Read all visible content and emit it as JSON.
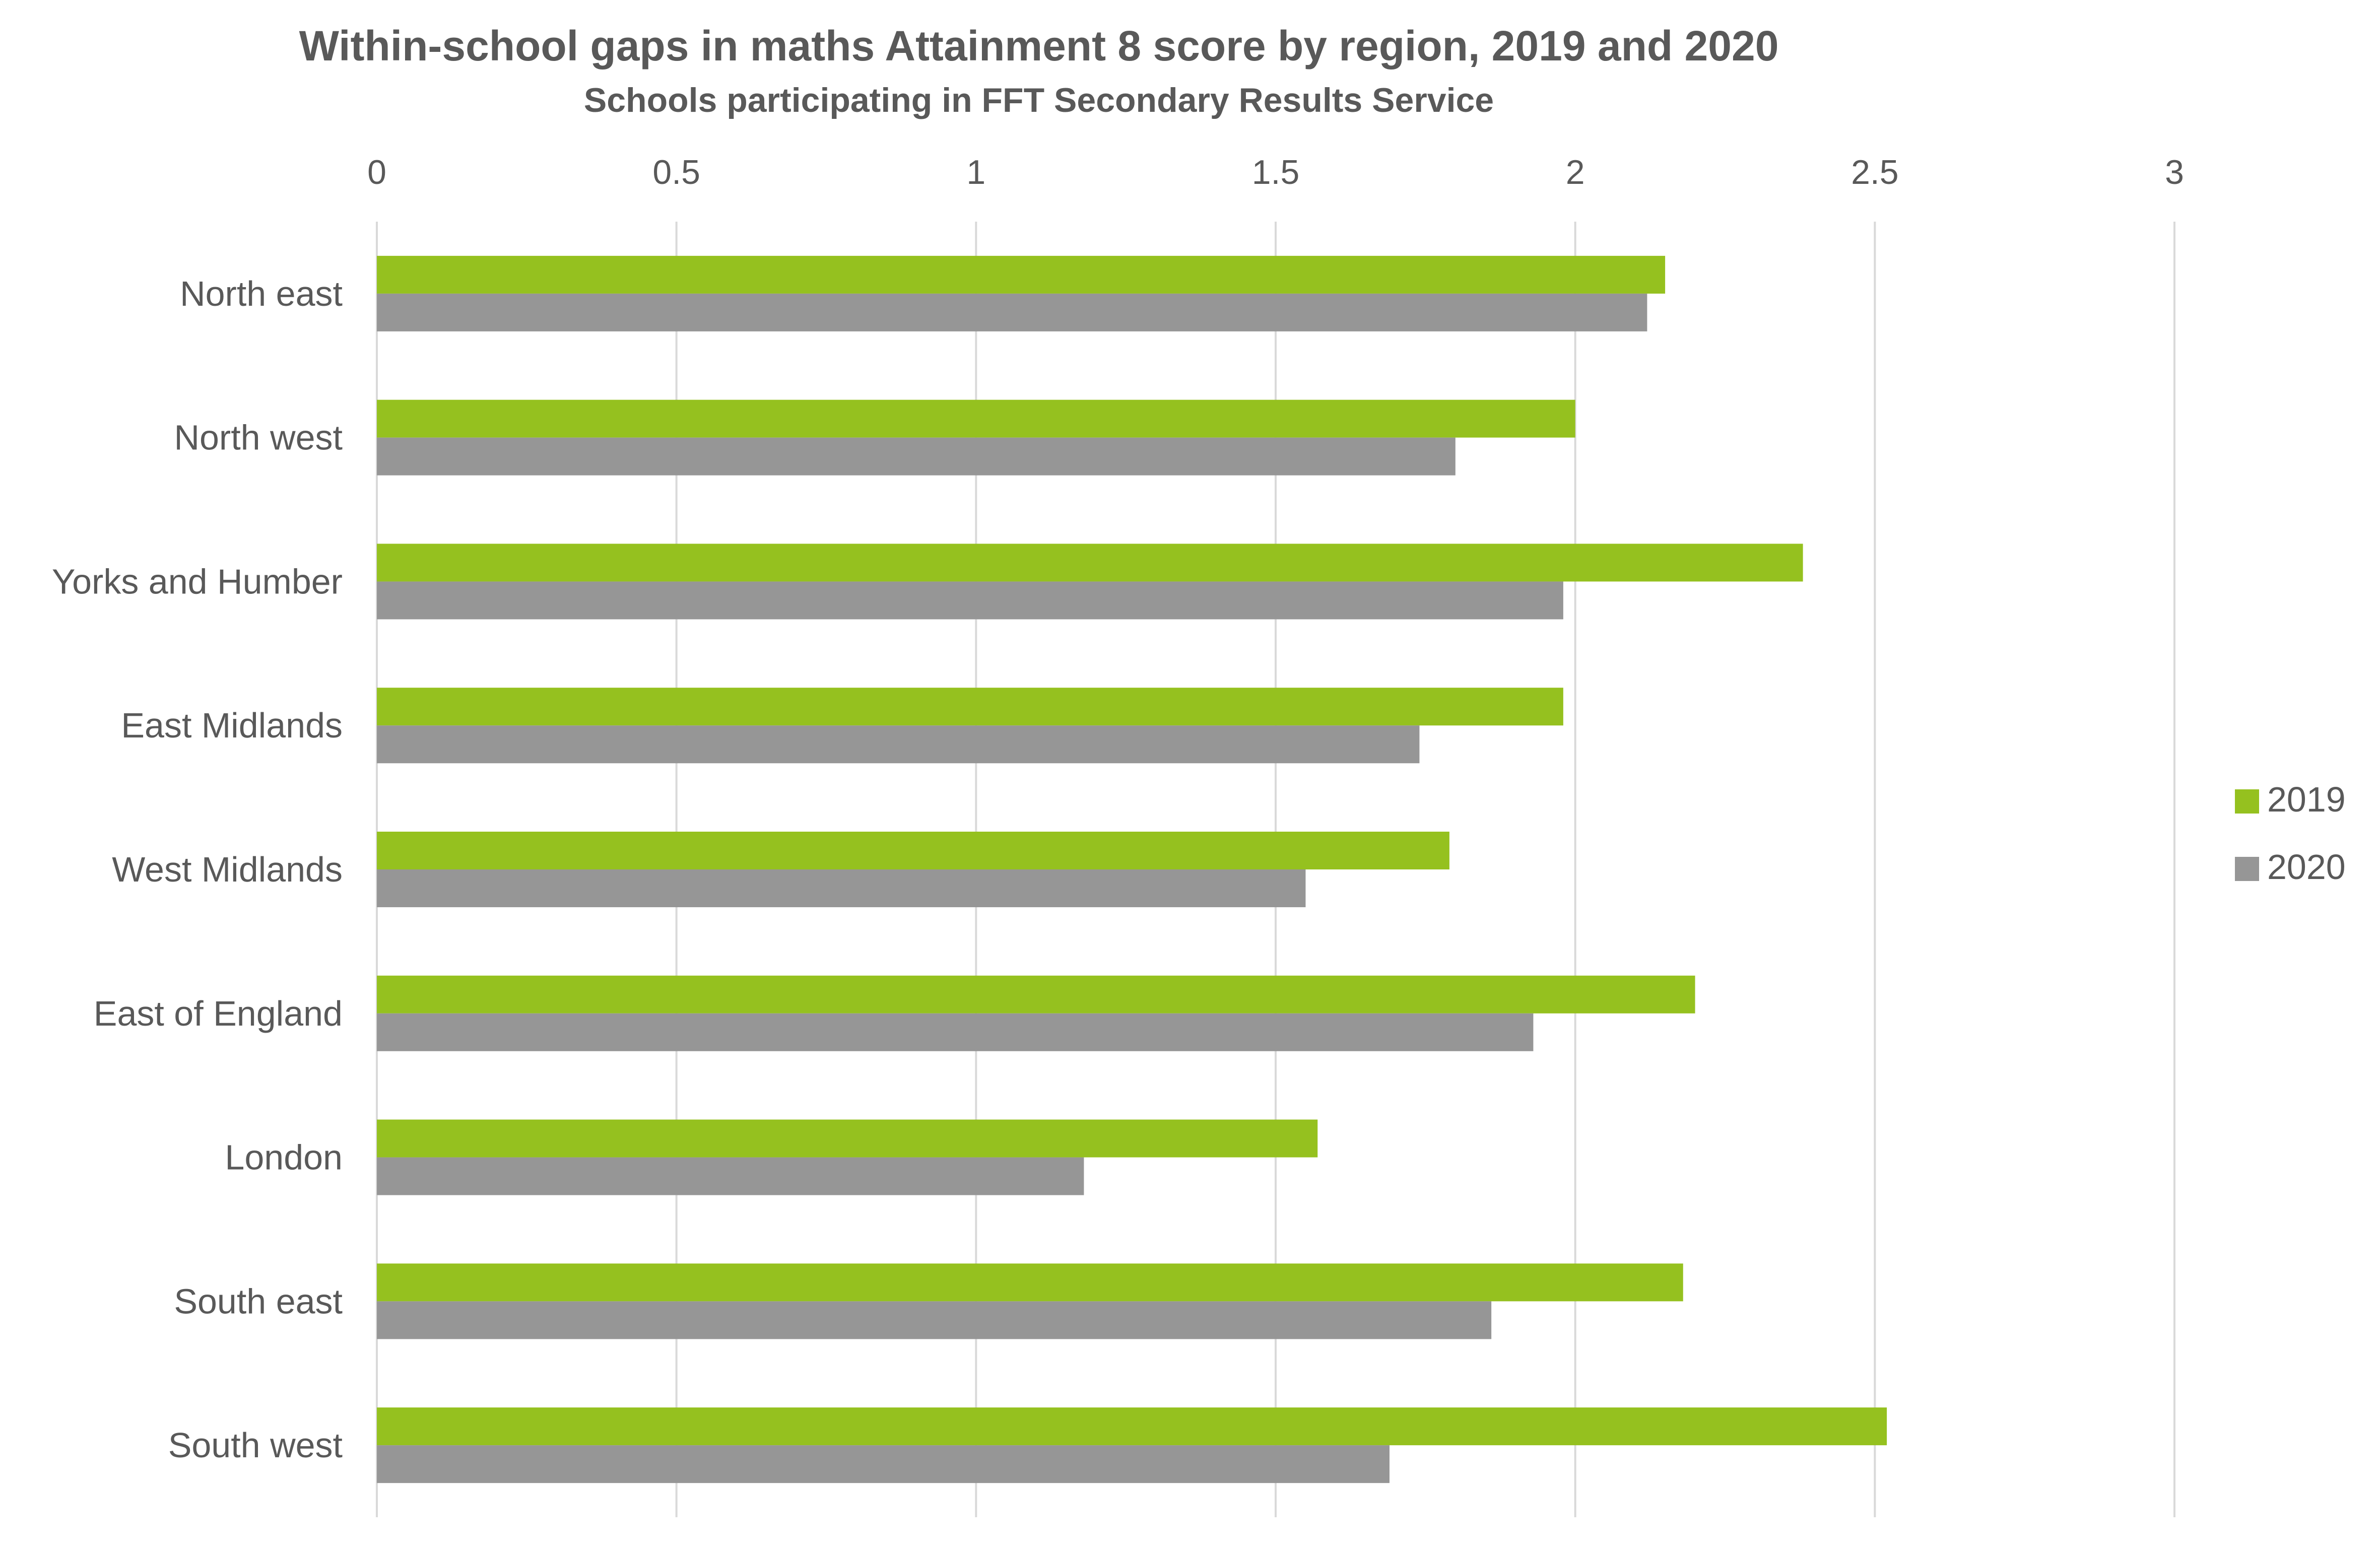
{
  "chart_data": {
    "type": "bar",
    "orientation": "horizontal",
    "title": "Within-school gaps in maths Attainment 8 score by region, 2019 and 2020",
    "subtitle": "Schools participating in FFT Secondary Results Service",
    "xlabel": "",
    "ylabel": "",
    "xlim": [
      0,
      3
    ],
    "x_ticks": [
      "0",
      "0.5",
      "1",
      "1.5",
      "2",
      "2.5",
      "3"
    ],
    "x_tick_values": [
      0,
      0.5,
      1,
      1.5,
      2,
      2.5,
      3
    ],
    "x_axis_position": "top",
    "grid": true,
    "legend_position": "right",
    "categories": [
      "North east",
      "North west",
      "Yorks and Humber",
      "East Midlands",
      "West Midlands",
      "East of England",
      "London",
      "South east",
      "South west"
    ],
    "series": [
      {
        "name": "2019",
        "color": "#95c11f",
        "values": [
          2.15,
          2.0,
          2.38,
          1.98,
          1.79,
          2.2,
          1.57,
          2.18,
          2.52
        ]
      },
      {
        "name": "2020",
        "color": "#969696",
        "values": [
          2.12,
          1.8,
          1.98,
          1.74,
          1.55,
          1.93,
          1.18,
          1.86,
          1.69
        ]
      }
    ]
  }
}
